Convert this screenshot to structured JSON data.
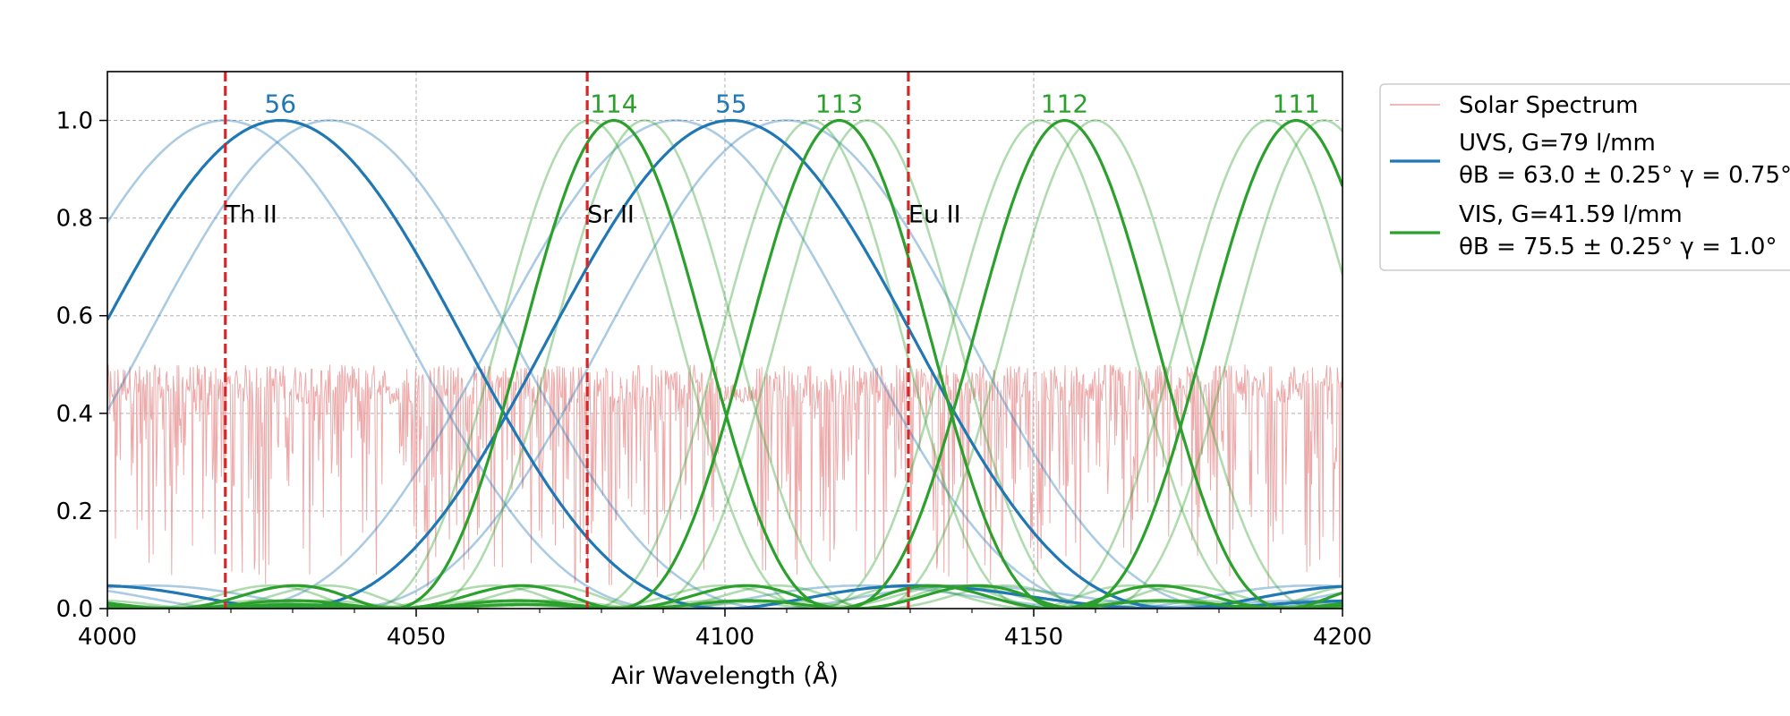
{
  "chart_data": {
    "type": "line",
    "title": "",
    "xlabel": "Air Wavelength (Å)",
    "ylabel": "",
    "xlim": [
      4000,
      4200
    ],
    "ylim": [
      0,
      1.1
    ],
    "xticks": [
      4000,
      4050,
      4100,
      4150,
      4200
    ],
    "xtick_labels": [
      "4000",
      "4050",
      "4100",
      "4150",
      "4200"
    ],
    "yticks": [
      0.0,
      0.2,
      0.4,
      0.6,
      0.8,
      1.0
    ],
    "ytick_labels": [
      "0.0",
      "0.2",
      "0.4",
      "0.6",
      "0.8",
      "1.0"
    ],
    "grid": true,
    "legend_position": "outside-right",
    "colors": {
      "solar": "#eba0a0",
      "uvs": "#1f77b4",
      "vis": "#2ca02c",
      "lines": "#d62728"
    },
    "legend": [
      {
        "key": "solar",
        "label": "Solar Spectrum"
      },
      {
        "key": "uvs",
        "label": "UVS, G=79 l/mm",
        "label_line2": "θB = 63.0 ± 0.25° γ = 0.75°"
      },
      {
        "key": "vis",
        "label": "VIS, G=41.59 l/mm",
        "label_line2": "θB = 75.5 ± 0.25° γ = 1.0°"
      }
    ],
    "series": [
      {
        "key": "uvs",
        "main_orders": [
          {
            "label": "56",
            "peak": 4028,
            "half_width": 72
          },
          {
            "label": "55",
            "peak": 4101,
            "half_width": 72
          }
        ],
        "faint_orders": [
          {
            "peak": 4019,
            "half_width": 72
          },
          {
            "peak": 4036,
            "half_width": 72
          },
          {
            "peak": 4092,
            "half_width": 72
          },
          {
            "peak": 4110,
            "half_width": 72
          }
        ]
      },
      {
        "key": "vis",
        "main_orders": [
          {
            "label": "114",
            "peak": 4082,
            "half_width": 36
          },
          {
            "label": "113",
            "peak": 4118.5,
            "half_width": 36
          },
          {
            "label": "112",
            "peak": 4155,
            "half_width": 36
          },
          {
            "label": "111",
            "peak": 4192.5,
            "half_width": 36
          }
        ],
        "faint_orders": [
          {
            "peak": 4078,
            "half_width": 36
          },
          {
            "peak": 4087,
            "half_width": 36
          },
          {
            "peak": 4114,
            "half_width": 36
          },
          {
            "peak": 4123,
            "half_width": 36
          },
          {
            "peak": 4151,
            "half_width": 36
          },
          {
            "peak": 4160,
            "half_width": 36
          },
          {
            "peak": 4188,
            "half_width": 36
          },
          {
            "peak": 4197,
            "half_width": 36
          }
        ]
      }
    ],
    "spectral_lines": [
      {
        "label": "Th II",
        "x": 4019.1
      },
      {
        "label": "Sr II",
        "x": 4077.7
      },
      {
        "label": "Eu II",
        "x": 4129.7
      }
    ],
    "solar_spectrum": {
      "continuum": 0.47,
      "gaps": [
        [
          4045,
          4047
        ],
        [
          4099,
          4105
        ]
      ]
    }
  }
}
